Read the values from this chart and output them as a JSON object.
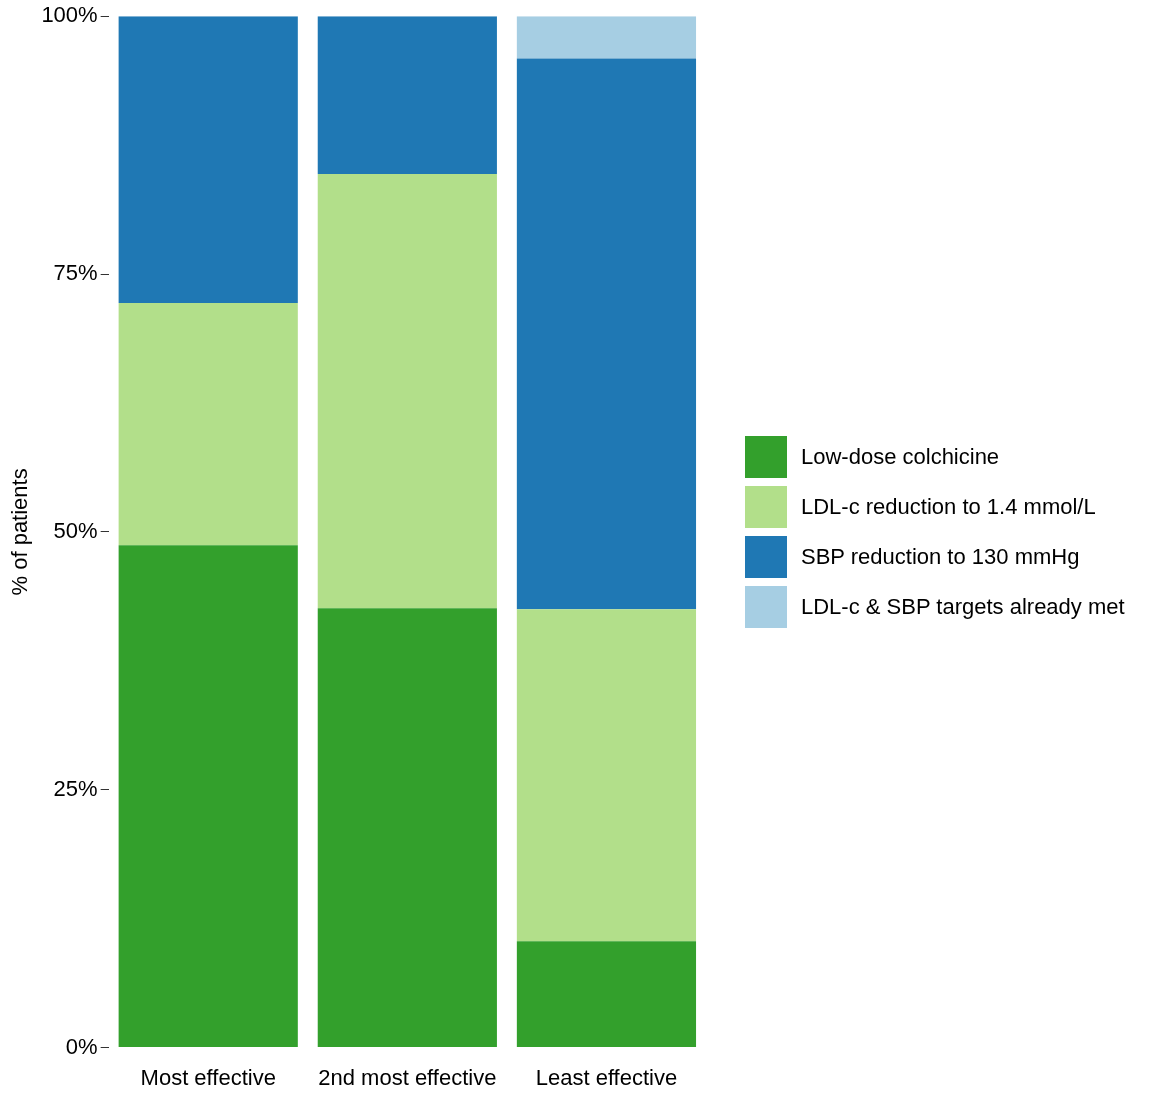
{
  "chart_data": {
    "type": "bar",
    "stacked": true,
    "ylabel": "% of patients",
    "categories": [
      "Most effective",
      "2nd most effective",
      "Least effective"
    ],
    "series": [
      {
        "name": "Low-dose colchicine",
        "color": "#33a02c",
        "values": [
          48.7,
          42.6,
          10.3
        ]
      },
      {
        "name": "LDL-c reduction to 1.4 mmol/L",
        "color": "#b2df8a",
        "values": [
          23.5,
          42.1,
          32.2
        ]
      },
      {
        "name": "SBP reduction to 130 mmHg",
        "color": "#1f78b4",
        "values": [
          27.8,
          15.3,
          53.4
        ]
      },
      {
        "name": "LDL-c & SBP targets already met",
        "color": "#a6cee3",
        "values": [
          0,
          0,
          4.1
        ]
      }
    ],
    "ylim": [
      0,
      100
    ],
    "yticks": [
      {
        "value": 0,
        "label": "0%"
      },
      {
        "value": 25,
        "label": "25%"
      },
      {
        "value": 50,
        "label": "50%"
      },
      {
        "value": 75,
        "label": "75%"
      },
      {
        "value": 100,
        "label": "100%"
      }
    ],
    "grid": false,
    "legend": "right"
  }
}
